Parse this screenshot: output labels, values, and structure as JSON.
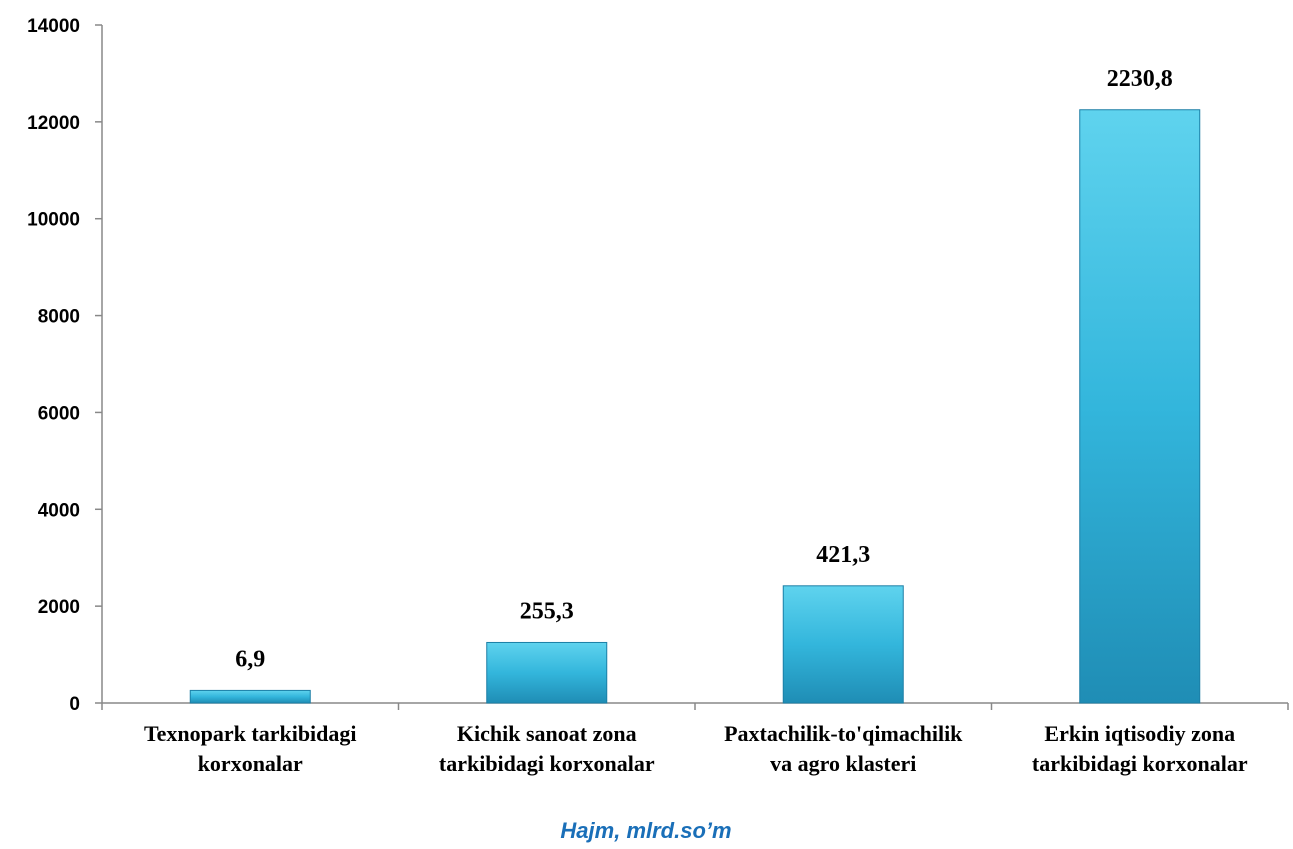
{
  "chart_data": {
    "type": "bar",
    "categories": [
      [
        "Texnopark tarkibidagi",
        "korxonalar"
      ],
      [
        "Kichik sanoat zona",
        "tarkibidagi korxonalar"
      ],
      [
        "Paxtachilik-to'qimachilik",
        "va agro klasteri"
      ],
      [
        "Erkin iqtisodiy zona",
        "tarkibidagi korxonalar"
      ]
    ],
    "values": [
      260,
      1250,
      2420,
      12250
    ],
    "data_labels": [
      "6,9",
      "255,3",
      "421,3",
      "2230,8"
    ],
    "yticks": [
      0,
      2000,
      4000,
      6000,
      8000,
      10000,
      12000,
      14000
    ],
    "ylim": [
      0,
      14000
    ],
    "xlabel": "Hajm, mlrd.so’m",
    "ylabel": "",
    "title": "",
    "grid": false,
    "colors": {
      "bar_top": "#5fd3ee",
      "bar_mid": "#33b6dc",
      "bar_bottom": "#1f8db5",
      "axis": "#888888",
      "xlabel": "#1a6fb8"
    }
  }
}
